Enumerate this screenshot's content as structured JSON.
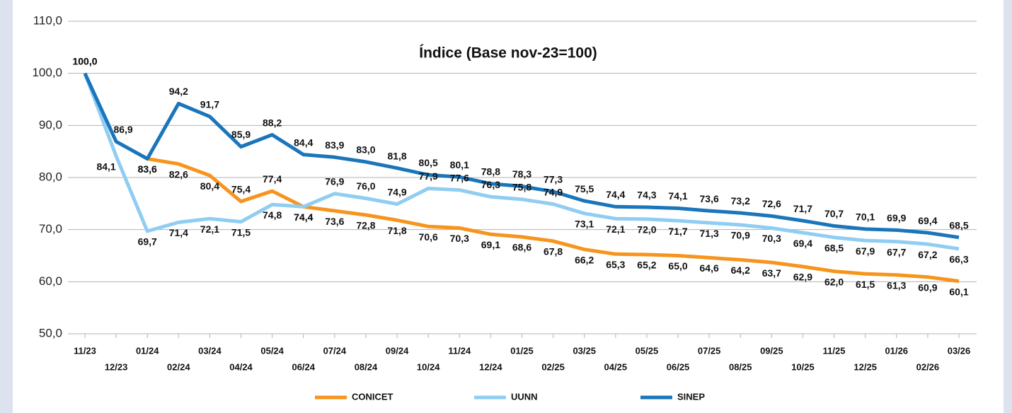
{
  "chart_data": {
    "type": "line",
    "title": "Índice (Base nov-23=100)",
    "categories": [
      "11/23",
      "12/23",
      "01/24",
      "02/24",
      "03/24",
      "04/24",
      "05/24",
      "06/24",
      "07/24",
      "08/24",
      "09/24",
      "10/24",
      "11/24",
      "12/24",
      "01/25",
      "02/25",
      "03/25",
      "04/25",
      "05/25",
      "06/25",
      "07/25",
      "08/25",
      "09/25",
      "10/25",
      "11/25",
      "12/25",
      "01/26",
      "02/26",
      "03/26"
    ],
    "series": [
      {
        "name": "CONICET",
        "color": "#f7941d",
        "values": [
          null,
          null,
          83.6,
          82.6,
          80.4,
          75.4,
          77.4,
          74.4,
          73.6,
          72.8,
          71.8,
          70.6,
          70.3,
          69.1,
          68.6,
          67.8,
          66.2,
          65.3,
          65.2,
          65.0,
          64.6,
          64.2,
          63.7,
          62.9,
          62.0,
          61.5,
          61.3,
          60.9,
          60.1
        ],
        "value_labels": [
          null,
          null,
          "83,6",
          "82,6",
          "80,4",
          "75,4",
          "77,4",
          "74,4",
          "73,6",
          "72,8",
          "71,8",
          "70,6",
          "70,3",
          "69,1",
          "68,6",
          "67,8",
          "66,2",
          "65,3",
          "65,2",
          "65,0",
          "64,6",
          "64,2",
          "63,7",
          "62,9",
          "62,0",
          "61,5",
          "61,3",
          "60,9",
          "60,1"
        ]
      },
      {
        "name": "UUNN",
        "color": "#8fcdf2",
        "values": [
          100.0,
          84.1,
          69.7,
          71.4,
          72.1,
          71.5,
          74.8,
          74.4,
          76.9,
          76.0,
          74.9,
          77.9,
          77.6,
          76.3,
          75.8,
          74.9,
          73.1,
          72.1,
          72.0,
          71.7,
          71.3,
          70.9,
          70.3,
          69.4,
          68.5,
          67.9,
          67.7,
          67.2,
          66.3
        ],
        "value_labels": [
          "100,0",
          "84,1",
          "69,7",
          "71,4",
          "72,1",
          "71,5",
          "74,8",
          "74,4",
          "76,9",
          "76,0",
          "74,9",
          "77,9",
          "77,6",
          "76,3",
          "75,8",
          "74,9",
          "73,1",
          "72,1",
          "72,0",
          "71,7",
          "71,3",
          "70,9",
          "70,3",
          "69,4",
          "68,5",
          "67,9",
          "67,7",
          "67,2",
          "66,3"
        ]
      },
      {
        "name": "SINEP",
        "color": "#1a75bb",
        "values": [
          100.0,
          86.9,
          83.6,
          94.2,
          91.7,
          85.9,
          88.2,
          84.4,
          83.9,
          83.0,
          81.8,
          80.5,
          80.1,
          78.8,
          78.3,
          77.3,
          75.5,
          74.4,
          74.3,
          74.1,
          73.6,
          73.2,
          72.6,
          71.7,
          70.7,
          70.1,
          69.9,
          69.4,
          68.5
        ],
        "value_labels": [
          "100,0",
          "86,9",
          "83,6",
          "94,2",
          "91,7",
          "85,9",
          "88,2",
          "84,4",
          "83,9",
          "83,0",
          "81,8",
          "80,5",
          "80,1",
          "78,8",
          "78,3",
          "77,3",
          "75,5",
          "74,4",
          "74,3",
          "74,1",
          "73,6",
          "73,2",
          "72,6",
          "71,7",
          "70,7",
          "70,1",
          "69,9",
          "69,4",
          "68,5"
        ]
      }
    ],
    "ylim": [
      50,
      110
    ],
    "yticks": [
      {
        "value": 50,
        "label": "50,0"
      },
      {
        "value": 60,
        "label": "60,0"
      },
      {
        "value": 70,
        "label": "70,0"
      },
      {
        "value": 80,
        "label": "80,0"
      },
      {
        "value": 90,
        "label": "90,0"
      },
      {
        "value": 100,
        "label": "100,0"
      },
      {
        "value": 110,
        "label": "110,0"
      }
    ],
    "grid": true,
    "legend": "bottom"
  }
}
